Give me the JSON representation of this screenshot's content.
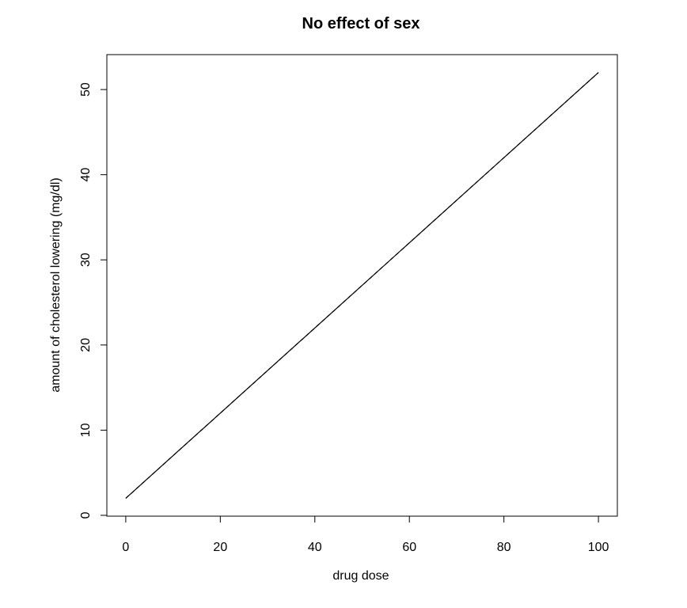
{
  "chart_data": {
    "type": "line",
    "title": "No effect of sex",
    "xlabel": "drug dose",
    "ylabel": "amount of cholesterol lowering (mg/dl)",
    "xlim": [
      -4,
      104
    ],
    "ylim": [
      -0.1,
      54.1
    ],
    "xticks": [
      0,
      20,
      40,
      60,
      80,
      100
    ],
    "yticks": [
      0,
      10,
      20,
      30,
      40,
      50
    ],
    "grid": false,
    "series": [
      {
        "x": [
          0,
          100
        ],
        "y": [
          2,
          52
        ],
        "color": "#000000"
      },
      {
        "x": [
          0,
          100
        ],
        "y": [
          2,
          52
        ],
        "color": "#000000",
        "dash": true
      }
    ]
  }
}
